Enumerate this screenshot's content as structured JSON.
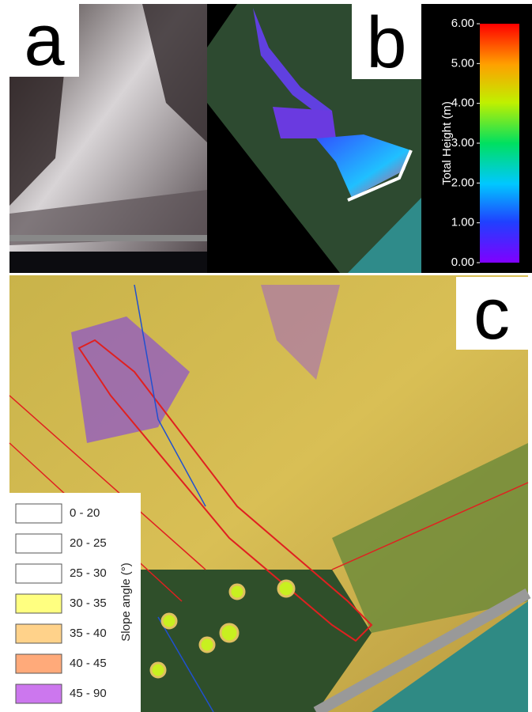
{
  "panels": {
    "a": {
      "label": "a"
    },
    "b": {
      "label": "b"
    },
    "c": {
      "label": "c"
    }
  },
  "colorbar": {
    "title": "Total Height (m)",
    "lim": [
      0,
      6
    ],
    "ticks": [
      {
        "value": 0,
        "label": "0.00"
      },
      {
        "value": 1,
        "label": "1.00"
      },
      {
        "value": 2,
        "label": "2.00"
      },
      {
        "value": 3,
        "label": "3.00"
      },
      {
        "value": 4,
        "label": "4.00"
      },
      {
        "value": 5,
        "label": "5.00"
      },
      {
        "value": 6,
        "label": "6.00"
      }
    ]
  },
  "legend": {
    "title": "Slope angle (°)",
    "items": [
      {
        "label": "0 - 20",
        "color": "#ffffff"
      },
      {
        "label": "20 - 25",
        "color": "#ffffff"
      },
      {
        "label": "25 - 30",
        "color": "#ffffff"
      },
      {
        "label": "30 - 35",
        "color": "#ffff80"
      },
      {
        "label": "35 - 40",
        "color": "#ffd28a"
      },
      {
        "label": "40 - 45",
        "color": "#ffaa7a"
      },
      {
        "label": "45 - 90",
        "color": "#cc77ee"
      }
    ]
  }
}
